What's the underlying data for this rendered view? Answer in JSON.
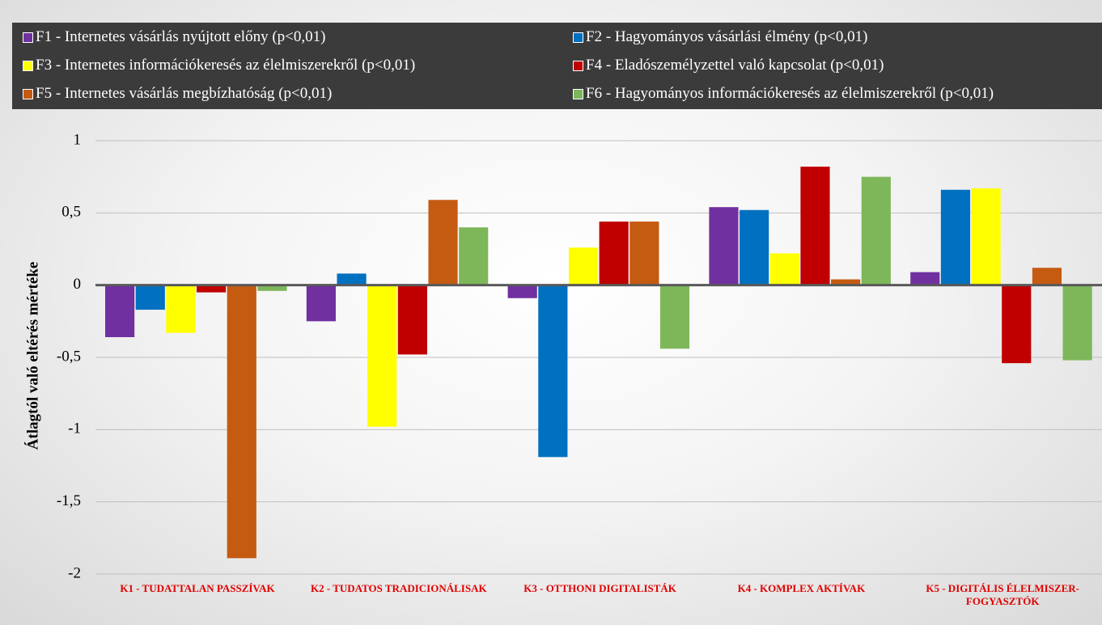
{
  "chart_data": {
    "type": "bar",
    "y_label": "Átlagtól való eltérés mértéke",
    "legend": "top",
    "grid": true,
    "categories": [
      "K1 - TUDATTALAN PASSZÍVAK",
      "K2 - TUDATOS TRADICIONÁLISAK",
      "K3 - OTTHONI DIGITALISTÁK",
      "K4 - KOMPLEX AKTÍVAK",
      "K5 - DIGITÁLIS ÉLELMISZER-FOGYASZTÓK"
    ],
    "series": [
      {
        "name": "F1 - Internetes vásárlás nyújtott előny (p<0,01)",
        "color": "#7030a0",
        "values": [
          -0.36,
          -0.25,
          -0.09,
          0.54,
          0.09
        ]
      },
      {
        "name": "F2 - Hagyományos vásárlási élmény (p<0,01)",
        "color": "#0070c0",
        "values": [
          -0.17,
          0.08,
          -1.19,
          0.52,
          0.66
        ]
      },
      {
        "name": "F3 - Internetes információkeresés az élelmiszerekről (p<0,01)",
        "color": "#ffff00",
        "values": [
          -0.33,
          -0.98,
          0.26,
          0.22,
          0.67
        ]
      },
      {
        "name": "F4 - Eladószemélyzettel való kapcsolat (p<0,01)",
        "color": "#c00000",
        "values": [
          -0.05,
          -0.48,
          0.44,
          0.82,
          -0.54
        ]
      },
      {
        "name": "F5 - Internetes vásárlás megbízhatóság (p<0,01)",
        "color": "#c55a11",
        "values": [
          -1.89,
          0.59,
          0.44,
          0.04,
          0.12
        ]
      },
      {
        "name": "F6 - Hagyományos információkeresés az élelmiszerekről (p<0,01)",
        "color": "#7db75a",
        "values": [
          -0.04,
          0.4,
          -0.44,
          0.75,
          -0.52
        ]
      }
    ],
    "ylim": [
      -2,
      1
    ],
    "yticks": [
      -2,
      {
        "value": -1.5,
        "label": "-1,5"
      },
      -1,
      {
        "value": -0.5,
        "label": "-0,5"
      },
      0,
      {
        "value": 0.5,
        "label": "0,5"
      },
      1
    ]
  }
}
